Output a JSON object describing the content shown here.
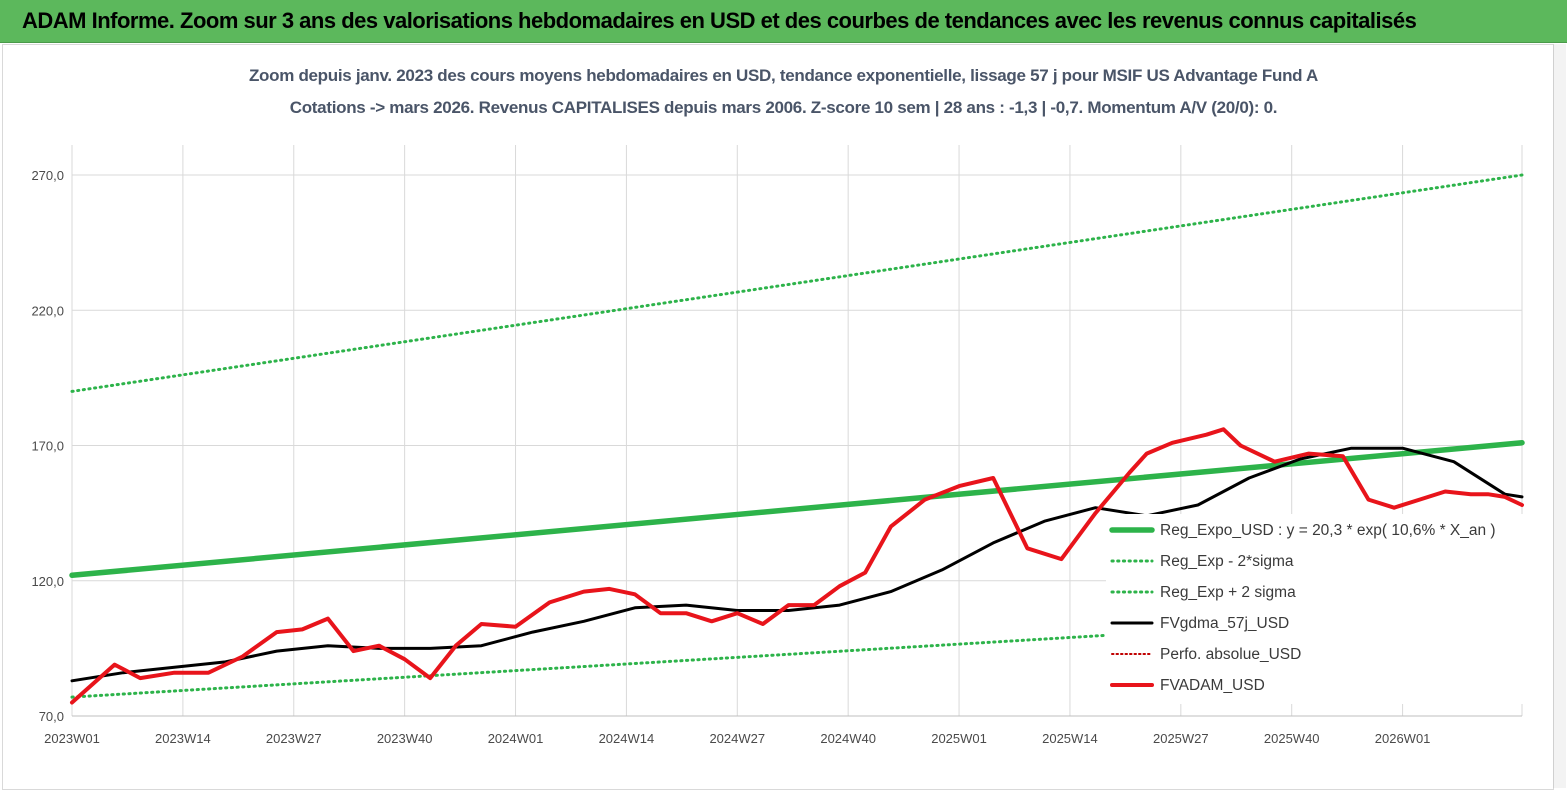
{
  "header": {
    "title": "ADAM Informe. Zoom sur 3 ans des valorisations hebdomadaires en USD et des courbes de tendances avec les revenus connus capitalisés"
  },
  "colors": {
    "header_bg": "#5cb85c",
    "fvadam": "#e8141b",
    "fvgdma": "#000000",
    "reg_expo": "#2db34a",
    "sigma": "#2db34a",
    "perfo": "#c00000"
  },
  "chart_data": {
    "type": "line",
    "title": "Zoom depuis janv. 2023 des cours moyens hebdomadaires en USD, tendance exponentielle, lissage 57 j pour MSIF US Advantage Fund A",
    "subtitle": "Cotations -> mars 2026. Revenus CAPITALISES depuis mars 2006. Z-score 10 sem | 28 ans : -1,3 | -0,7. Momentum A/V (20/0): 0.",
    "ylim": [
      70,
      270
    ],
    "y_ticks": [
      "70,0",
      "120,0",
      "170,0",
      "220,0",
      "270,0"
    ],
    "x_ticks": [
      "2023W01",
      "2023W14",
      "2023W27",
      "2023W40",
      "2024W01",
      "2024W14",
      "2024W27",
      "2024W40",
      "2025W01",
      "2025W14",
      "2025W27",
      "2025W40",
      "2026W01"
    ],
    "grid": true,
    "legend_position": "bottom-right",
    "legend": [
      "Reg_Expo_USD : y = 20,3 * exp( 10,6% * X_an )",
      "Reg_Exp - 2*sigma",
      "Reg_Exp + 2 sigma",
      "FVgdma_57j_USD",
      "Perfo. absolue_USD",
      "FVADAM_USD"
    ],
    "series": [
      {
        "name": "Reg_Expo_USD : y = 20,3 * exp( 10,6% * X_an )",
        "x_week_index": [
          0,
          170
        ],
        "values": [
          122,
          171
        ]
      },
      {
        "name": "Reg_Exp - 2*sigma",
        "x_week_index": [
          0,
          170
        ],
        "values": [
          77,
          109
        ]
      },
      {
        "name": "Reg_Exp + 2 sigma",
        "x_week_index": [
          0,
          170
        ],
        "values": [
          190,
          270
        ]
      },
      {
        "name": "FVgdma_57j_USD",
        "x_week_index": [
          0,
          6,
          12,
          18,
          24,
          30,
          36,
          42,
          48,
          54,
          60,
          66,
          72,
          78,
          84,
          90,
          96,
          102,
          108,
          114,
          120,
          126,
          132,
          138,
          144,
          150,
          156,
          162,
          168,
          170
        ],
        "values": [
          83,
          86,
          88,
          90,
          94,
          96,
          95,
          95,
          96,
          101,
          105,
          110,
          111,
          109,
          109,
          111,
          116,
          124,
          134,
          142,
          147,
          144,
          148,
          158,
          165,
          169,
          169,
          164,
          152,
          151
        ]
      },
      {
        "name": "FVADAM_USD",
        "x_week_index": [
          0,
          5,
          8,
          12,
          16,
          20,
          24,
          27,
          30,
          33,
          36,
          39,
          42,
          45,
          48,
          52,
          56,
          60,
          63,
          66,
          69,
          72,
          75,
          78,
          81,
          84,
          87,
          90,
          93,
          96,
          100,
          104,
          108,
          112,
          116,
          120,
          124,
          126,
          129,
          133,
          135,
          137,
          141,
          145,
          149,
          152,
          155,
          158,
          161,
          164,
          166,
          168,
          170
        ],
        "values": [
          75,
          89,
          84,
          86,
          86,
          92,
          101,
          102,
          106,
          94,
          96,
          91,
          84,
          96,
          104,
          103,
          112,
          116,
          117,
          115,
          108,
          108,
          105,
          108,
          104,
          111,
          111,
          118,
          123,
          140,
          150,
          155,
          158,
          132,
          128,
          145,
          160,
          167,
          171,
          174,
          176,
          170,
          164,
          167,
          166,
          150,
          147,
          150,
          153,
          152,
          152,
          151,
          148
        ]
      }
    ]
  }
}
